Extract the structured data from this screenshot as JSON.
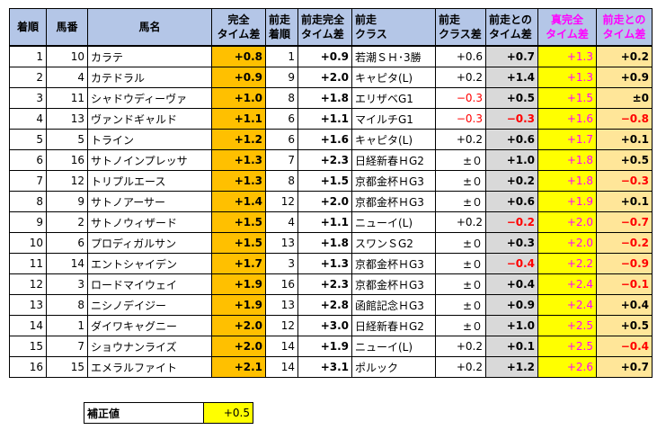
{
  "headers": {
    "finish": "着順",
    "post": "馬番",
    "name": "馬名",
    "ta_l1": "完全",
    "ta_l2": "タイム差",
    "pf_l1": "前走",
    "pf_l2": "着順",
    "pta_l1": "前走完全",
    "pta_l2": "タイム差",
    "pc_l1": "前走",
    "pc_l2": "クラス",
    "cd_l1": "前走",
    "cd_l2": "クラス差",
    "td_l1": "前走との",
    "td_l2": "タイム差",
    "tta_l1": "真完全",
    "tta_l2": "タイム差",
    "ttd_l1": "前走との",
    "ttd_l2": "タイム差"
  },
  "rows": [
    {
      "finish": "1",
      "post": "10",
      "name": "カラテ",
      "ta": "+0.8",
      "pf": "1",
      "pta": "+0.9",
      "pc": "若潮ＳＨ･3勝",
      "cd": "+0.6",
      "td": "+0.7",
      "tta": "+1.3",
      "ttd": "+0.2"
    },
    {
      "finish": "2",
      "post": "4",
      "name": "カテドラル",
      "ta": "+0.9",
      "pf": "9",
      "pta": "+2.0",
      "pc": "キャピタ(L)",
      "cd": "+0.2",
      "td": "+1.4",
      "tta": "+1.3",
      "ttd": "+0.9"
    },
    {
      "finish": "3",
      "post": "11",
      "name": "シャドウディーヴァ",
      "ta": "+1.0",
      "pf": "8",
      "pta": "+1.8",
      "pc": "エリザベG1",
      "cd": "−0.3",
      "td": "+0.5",
      "tta": "+1.5",
      "ttd": "±0"
    },
    {
      "finish": "4",
      "post": "13",
      "name": "ヴァンドギャルド",
      "ta": "+1.1",
      "pf": "6",
      "pta": "+1.1",
      "pc": "マイルチG1",
      "cd": "−0.3",
      "td": "−0.3",
      "tta": "+1.6",
      "ttd": "−0.8"
    },
    {
      "finish": "5",
      "post": "5",
      "name": "トライン",
      "ta": "+1.2",
      "pf": "6",
      "pta": "+1.6",
      "pc": "キャピタ(L)",
      "cd": "+0.2",
      "td": "+0.6",
      "tta": "+1.7",
      "ttd": "+0.1"
    },
    {
      "finish": "6",
      "post": "16",
      "name": "サトノインプレッサ",
      "ta": "+1.3",
      "pf": "7",
      "pta": "+2.3",
      "pc": "日経新春ＨG2",
      "cd": "±０",
      "td": "+1.0",
      "tta": "+1.8",
      "ttd": "+0.5"
    },
    {
      "finish": "7",
      "post": "12",
      "name": "トリプルエース",
      "ta": "+1.3",
      "pf": "8",
      "pta": "+1.5",
      "pc": "京都金杯ＨG3",
      "cd": "±０",
      "td": "+0.2",
      "tta": "+1.8",
      "ttd": "−0.3"
    },
    {
      "finish": "8",
      "post": "9",
      "name": "サトノアーサー",
      "ta": "+1.4",
      "pf": "12",
      "pta": "+2.0",
      "pc": "京都金杯ＨG3",
      "cd": "±０",
      "td": "+0.6",
      "tta": "+1.9",
      "ttd": "+0.1"
    },
    {
      "finish": "9",
      "post": "2",
      "name": "サトノウィザード",
      "ta": "+1.5",
      "pf": "4",
      "pta": "+1.1",
      "pc": "ニューイ(L)",
      "cd": "+0.2",
      "td": "−0.2",
      "tta": "+2.0",
      "ttd": "−0.7"
    },
    {
      "finish": "10",
      "post": "6",
      "name": "プロディガルサン",
      "ta": "+1.5",
      "pf": "13",
      "pta": "+1.8",
      "pc": "スワンＳG2",
      "cd": "±０",
      "td": "+0.3",
      "tta": "+2.0",
      "ttd": "−0.2"
    },
    {
      "finish": "11",
      "post": "14",
      "name": "エントシャイデン",
      "ta": "+1.7",
      "pf": "3",
      "pta": "+1.3",
      "pc": "京都金杯ＨG3",
      "cd": "±０",
      "td": "−0.4",
      "tta": "+2.2",
      "ttd": "−0.9"
    },
    {
      "finish": "12",
      "post": "3",
      "name": "ロードマイウェイ",
      "ta": "+1.9",
      "pf": "16",
      "pta": "+2.3",
      "pc": "京都金杯ＨG3",
      "cd": "±０",
      "td": "+0.4",
      "tta": "+2.4",
      "ttd": "−0.1"
    },
    {
      "finish": "13",
      "post": "8",
      "name": "ニシノデイジー",
      "ta": "+1.9",
      "pf": "13",
      "pta": "+2.8",
      "pc": "函館記念ＨG3",
      "cd": "±０",
      "td": "+0.9",
      "tta": "+2.4",
      "ttd": "+0.4"
    },
    {
      "finish": "14",
      "post": "1",
      "name": "ダイワキャグニー",
      "ta": "+2.0",
      "pf": "12",
      "pta": "+3.0",
      "pc": "日経新春ＨG2",
      "cd": "±０",
      "td": "+1.0",
      "tta": "+2.5",
      "ttd": "+0.5"
    },
    {
      "finish": "15",
      "post": "7",
      "name": "ショウナンライズ",
      "ta": "+2.0",
      "pf": "14",
      "pta": "+1.9",
      "pc": "ニューイ(L)",
      "cd": "+0.2",
      "td": "+0.1",
      "tta": "+2.5",
      "ttd": "−0.4"
    },
    {
      "finish": "16",
      "post": "15",
      "name": "エメラルファイト",
      "ta": "+2.1",
      "pf": "14",
      "pta": "+3.1",
      "pc": "ポルック",
      "cd": "+0.2",
      "td": "+1.2",
      "tta": "+2.6",
      "ttd": "+0.7"
    }
  ],
  "correction": {
    "label": "補正値",
    "value": "+0.5"
  },
  "colors": {
    "header_blue": "#b4c6e7",
    "orange": "#ffc000",
    "yellow": "#ffff00",
    "peach": "#ffe699",
    "grey": "#d9d9d9",
    "negative_red": "#ff0000",
    "magenta_header": "#ff00ff"
  }
}
